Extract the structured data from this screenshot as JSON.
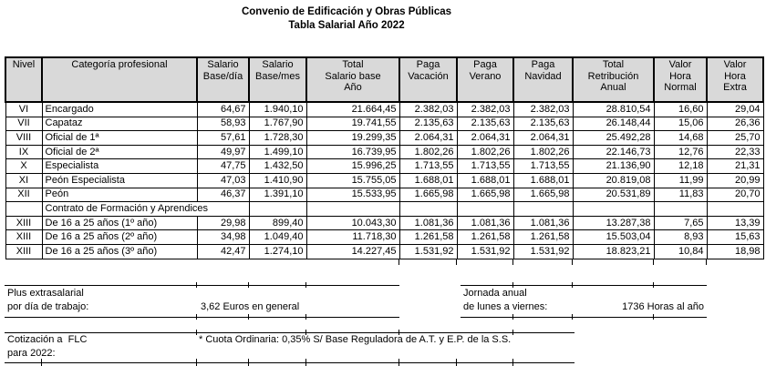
{
  "title": {
    "line1": "Convenio de Edificación y Obras Públicas",
    "line2": "Tabla Salarial Año 2022"
  },
  "table": {
    "headers": [
      "Nivel",
      "Categoría profesional",
      "Salario\nBase/día",
      "Salario\nBase/mes",
      "Total\nSalario base\nAño",
      "Paga\nVacación",
      "Paga\nVerano",
      "Paga\nNavidad",
      "Total\nRetribución\nAnual",
      "Valor\nHora\nNormal",
      "Valor\nHora\nExtra"
    ],
    "rows": [
      {
        "type": "data",
        "cells": [
          "VI",
          "Encargado",
          "64,67",
          "1.940,10",
          "21.664,45",
          "2.382,03",
          "2.382,03",
          "2.382,03",
          "28.810,54",
          "16,60",
          "29,04"
        ]
      },
      {
        "type": "data",
        "cells": [
          "VII",
          "Capataz",
          "58,93",
          "1.767,90",
          "19.741,55",
          "2.135,63",
          "2.135,63",
          "2.135,63",
          "26.148,44",
          "15,06",
          "26,36"
        ]
      },
      {
        "type": "data",
        "cells": [
          "VIII",
          "Oficial de 1ª",
          "57,61",
          "1.728,30",
          "19.299,35",
          "2.064,31",
          "2.064,31",
          "2.064,31",
          "25.492,28",
          "14,68",
          "25,70"
        ]
      },
      {
        "type": "data",
        "cells": [
          "IX",
          "Oficial de 2ª",
          "49,97",
          "1.499,10",
          "16.739,95",
          "1.802,26",
          "1.802,26",
          "1.802,26",
          "22.146,73",
          "12,76",
          "22,33"
        ]
      },
      {
        "type": "data",
        "cells": [
          "X",
          "Especialista",
          "47,75",
          "1.432,50",
          "15.996,25",
          "1.713,55",
          "1.713,55",
          "1.713,55",
          "21.136,90",
          "12,18",
          "21,31"
        ]
      },
      {
        "type": "data",
        "cells": [
          "XI",
          "Peón Especialista",
          "47,03",
          "1.410,90",
          "15.755,05",
          "1.688,01",
          "1.688,01",
          "1.688,01",
          "20.819,08",
          "11,99",
          "20,99"
        ]
      },
      {
        "type": "data",
        "cells": [
          "XII",
          "Peón",
          "46,37",
          "1.391,10",
          "15.533,95",
          "1.665,98",
          "1.665,98",
          "1.665,98",
          "20.531,89",
          "11,83",
          "20,70"
        ]
      },
      {
        "type": "section",
        "label": "Contrato de Formación y Aprendices"
      },
      {
        "type": "data",
        "cells": [
          "XIII",
          "De 16 a 25 años (1º año)",
          "29,98",
          "899,40",
          "10.043,30",
          "1.081,36",
          "1.081,36",
          "1.081,36",
          "13.287,38",
          "7,65",
          "13,39"
        ]
      },
      {
        "type": "data",
        "cells": [
          "XIII",
          "De 16 a 25 años (2º año)",
          "34,98",
          "1.049,40",
          "11.718,30",
          "1.261,58",
          "1.261,58",
          "1.261,58",
          "15.503,04",
          "8,93",
          "15,63"
        ]
      },
      {
        "type": "data",
        "cells": [
          "XIII",
          "De 16 a 25 años (3º año)",
          "42,47",
          "1.274,10",
          "14.227,45",
          "1.531,92",
          "1.531,92",
          "1.531,92",
          "18.823,21",
          "10,84",
          "18,98"
        ]
      }
    ]
  },
  "notes": {
    "plus_extrasalarial": {
      "line1": "Plus extrasalarial",
      "line2": "por día de trabajo:",
      "value": "3,62 Euros en general"
    },
    "jornada_anual": {
      "line1": "Jornada anual",
      "line2": "de lunes a viernes:",
      "value": "1736 Horas al año"
    },
    "cotizacion_flc": {
      "line1": "Cotización a  FLC",
      "line2": "para 2022:",
      "value": "* Cuota Ordinaria: 0,35% S/ Base Reguladora de A.T. y E.P. de la S.S."
    }
  },
  "colors": {
    "header_bg": "#d9d9d9",
    "border": "#000000",
    "text": "#000000"
  }
}
